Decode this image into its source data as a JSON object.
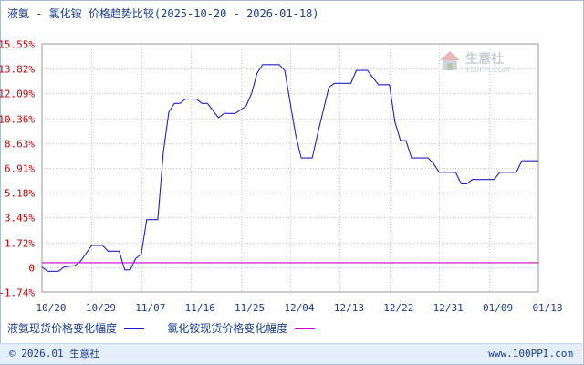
{
  "title": {
    "main": "液氨 - 氯化铵 价格趋势比较",
    "range": "(2025-10-20 - 2026-01-18)"
  },
  "watermark": {
    "text": "生意社",
    "url": "100PPI.COM"
  },
  "footer": {
    "copyright": "© 2026.01 生意社",
    "site": "www.100PPI.com"
  },
  "colors": {
    "series1": "#2020cc",
    "series2": "#cc00cc",
    "grid": "#c8c8c8",
    "axis_text": "#cc0000",
    "date_text": "#1a3c8c"
  },
  "chart_data": {
    "type": "line",
    "title": "液氨 - 氯化铵 价格趋势比较",
    "ylim": [
      -1.74,
      15.55
    ],
    "yticks": [
      "15.55%",
      "13.82%",
      "12.09%",
      "10.36%",
      "8.63%",
      "6.91%",
      "5.18%",
      "3.45%",
      "1.72%",
      "0",
      "-1.74%"
    ],
    "ytick_values": [
      15.55,
      13.82,
      12.09,
      10.36,
      8.63,
      6.91,
      5.18,
      3.45,
      1.72,
      0,
      -1.74
    ],
    "xticks": [
      "10/20",
      "10/29",
      "11/07",
      "11/16",
      "11/25",
      "12/04",
      "12/13",
      "12/22",
      "12/31",
      "01/09",
      "01/18"
    ],
    "x_domain": [
      "2025-10-20",
      "2026-01-18"
    ],
    "grid": true,
    "legend_position": "bottom",
    "series": [
      {
        "name": "液氨现货价格变化幅度",
        "points": [
          [
            "2025-10-20",
            0.0
          ],
          [
            "2025-10-21",
            -0.3
          ],
          [
            "2025-10-23",
            -0.3
          ],
          [
            "2025-10-24",
            0.0
          ],
          [
            "2025-10-26",
            0.1
          ],
          [
            "2025-10-27",
            0.4
          ],
          [
            "2025-10-29",
            1.5
          ],
          [
            "2025-10-31",
            1.5
          ],
          [
            "2025-11-01",
            1.1
          ],
          [
            "2025-11-03",
            1.1
          ],
          [
            "2025-11-04",
            -0.2
          ],
          [
            "2025-11-05",
            -0.2
          ],
          [
            "2025-11-06",
            0.6
          ],
          [
            "2025-11-07",
            0.9
          ],
          [
            "2025-11-08",
            3.3
          ],
          [
            "2025-11-10",
            3.3
          ],
          [
            "2025-11-11",
            8.0
          ],
          [
            "2025-11-12",
            10.8
          ],
          [
            "2025-11-13",
            11.4
          ],
          [
            "2025-11-14",
            11.4
          ],
          [
            "2025-11-15",
            11.7
          ],
          [
            "2025-11-17",
            11.7
          ],
          [
            "2025-11-18",
            11.4
          ],
          [
            "2025-11-19",
            11.4
          ],
          [
            "2025-11-21",
            10.4
          ],
          [
            "2025-11-22",
            10.7
          ],
          [
            "2025-11-24",
            10.7
          ],
          [
            "2025-11-26",
            11.2
          ],
          [
            "2025-11-27",
            12.1
          ],
          [
            "2025-11-28",
            13.5
          ],
          [
            "2025-11-29",
            14.1
          ],
          [
            "2025-12-02",
            14.1
          ],
          [
            "2025-12-03",
            13.7
          ],
          [
            "2025-12-05",
            9.2
          ],
          [
            "2025-12-06",
            7.6
          ],
          [
            "2025-12-08",
            7.6
          ],
          [
            "2025-12-09",
            9.3
          ],
          [
            "2025-12-11",
            12.5
          ],
          [
            "2025-12-12",
            12.8
          ],
          [
            "2025-12-15",
            12.8
          ],
          [
            "2025-12-16",
            13.7
          ],
          [
            "2025-12-18",
            13.7
          ],
          [
            "2025-12-20",
            12.7
          ],
          [
            "2025-12-22",
            12.7
          ],
          [
            "2025-12-23",
            10.1
          ],
          [
            "2025-12-24",
            8.8
          ],
          [
            "2025-12-25",
            8.8
          ],
          [
            "2025-12-26",
            7.6
          ],
          [
            "2025-12-29",
            7.6
          ],
          [
            "2025-12-30",
            7.2
          ],
          [
            "2025-12-31",
            6.6
          ],
          [
            "2026-01-03",
            6.6
          ],
          [
            "2026-01-04",
            5.8
          ],
          [
            "2026-01-05",
            5.8
          ],
          [
            "2026-01-06",
            6.1
          ],
          [
            "2026-01-10",
            6.1
          ],
          [
            "2026-01-11",
            6.6
          ],
          [
            "2026-01-14",
            6.6
          ],
          [
            "2026-01-15",
            7.4
          ],
          [
            "2026-01-18",
            7.4
          ]
        ]
      },
      {
        "name": "氯化铵现货价格变化幅度",
        "points": [
          [
            "2025-10-20",
            0.3
          ],
          [
            "2026-01-18",
            0.3
          ]
        ]
      }
    ]
  }
}
